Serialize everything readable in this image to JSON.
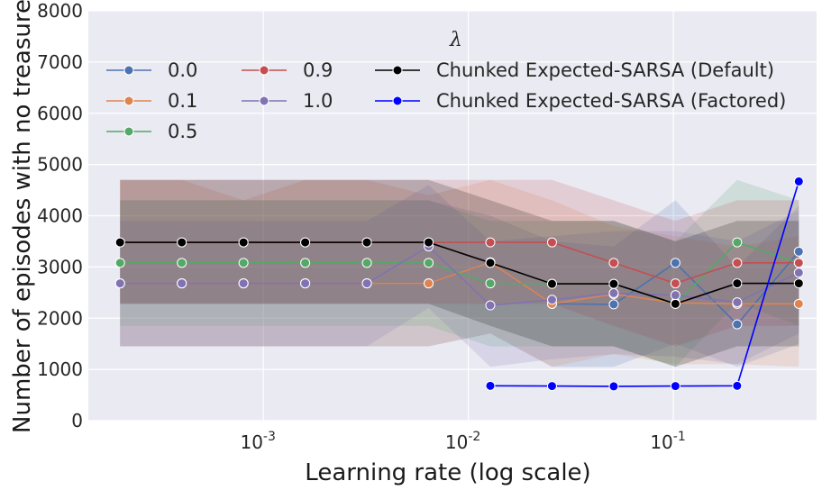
{
  "chart_data": {
    "type": "line",
    "title": "",
    "xlabel": "Learning rate (log scale)",
    "ylabel": "Number of episodes with no treasure",
    "x_scale": "log",
    "xlim": [
      0.00014,
      0.5
    ],
    "ylim": [
      0,
      8000
    ],
    "grid": true,
    "y_ticks": [
      0,
      1000,
      2000,
      3000,
      4000,
      5000,
      6000,
      7000,
      8000
    ],
    "x_ticks": [
      {
        "value": 0.001,
        "base": "10",
        "exp": "-3"
      },
      {
        "value": 0.01,
        "base": "10",
        "exp": "-2"
      },
      {
        "value": 0.1,
        "base": "10",
        "exp": "-1"
      }
    ],
    "legend": {
      "title": "λ",
      "placement": "top"
    },
    "x": [
      0.0002,
      0.0004,
      0.0008,
      0.0016,
      0.0032,
      0.0064,
      0.0128,
      0.0256,
      0.0512,
      0.1024,
      0.2048,
      0.4096
    ],
    "series": [
      {
        "name": "0.0",
        "color": "#4c72b0",
        "values": [
          2680,
          2680,
          2680,
          2680,
          2680,
          2680,
          3090,
          2280,
          2270,
          3080,
          1880,
          3300
        ],
        "lower": [
          1450,
          1450,
          1450,
          1450,
          1450,
          1450,
          1700,
          1050,
          1050,
          1500,
          1050,
          1500
        ],
        "upper": [
          4300,
          4300,
          4300,
          4300,
          4300,
          4300,
          4000,
          3500,
          3400,
          4300,
          3000,
          4200
        ]
      },
      {
        "name": "0.1",
        "color": "#dd8452",
        "values": [
          2680,
          2680,
          2680,
          2680,
          2680,
          2680,
          3090,
          2280,
          2470,
          2300,
          2280,
          2280
        ],
        "lower": [
          1450,
          1450,
          1450,
          1450,
          1450,
          1450,
          1700,
          1050,
          1300,
          1100,
          1100,
          1050
        ],
        "upper": [
          4700,
          4700,
          4300,
          4700,
          4700,
          4400,
          4700,
          4300,
          3800,
          3600,
          3400,
          3600
        ]
      },
      {
        "name": "0.5",
        "color": "#55a868",
        "values": [
          3080,
          3080,
          3080,
          3080,
          3080,
          3080,
          2680,
          2670,
          2670,
          2280,
          3480,
          3080
        ],
        "lower": [
          1850,
          1850,
          1850,
          1850,
          1850,
          1850,
          1450,
          1450,
          1450,
          1050,
          2300,
          1850
        ],
        "upper": [
          4300,
          4300,
          4300,
          4300,
          4300,
          4300,
          3900,
          3900,
          3900,
          3500,
          4700,
          4300
        ]
      },
      {
        "name": "0.9",
        "color": "#c44e52",
        "values": [
          3480,
          3480,
          3480,
          3480,
          3480,
          3480,
          3480,
          3480,
          3080,
          2680,
          3080,
          3080
        ],
        "lower": [
          2280,
          2280,
          2280,
          2280,
          2280,
          2280,
          2280,
          2280,
          1850,
          1450,
          1850,
          1850
        ],
        "upper": [
          4700,
          4700,
          4700,
          4700,
          4700,
          4700,
          4700,
          4700,
          4300,
          3900,
          4300,
          4300
        ]
      },
      {
        "name": "1.0",
        "color": "#8172b3",
        "values": [
          2680,
          2680,
          2680,
          2680,
          2680,
          3400,
          2250,
          2360,
          2490,
          2450,
          2310,
          2890
        ],
        "lower": [
          1450,
          1450,
          1450,
          1450,
          1450,
          2200,
          1050,
          1200,
          1300,
          1250,
          1100,
          1700
        ],
        "upper": [
          3900,
          3900,
          3900,
          3900,
          3900,
          4600,
          3500,
          3600,
          3700,
          3700,
          3500,
          4100
        ]
      },
      {
        "name": "Chunked Expected-SARSA (Default)",
        "color": "#000000",
        "values": [
          3480,
          3480,
          3480,
          3480,
          3480,
          3480,
          3080,
          2670,
          2670,
          2280,
          2680,
          2680
        ],
        "lower": [
          2280,
          2280,
          2280,
          2280,
          2280,
          2280,
          1850,
          1450,
          1450,
          1050,
          1450,
          1450
        ],
        "upper": [
          4700,
          4700,
          4700,
          4700,
          4700,
          4700,
          4300,
          3900,
          3900,
          3500,
          3900,
          3900
        ]
      },
      {
        "name": "Chunked Expected-SARSA (Factored)",
        "color": "#0000ff",
        "x": [
          0.0128,
          0.0256,
          0.0512,
          0.1024,
          0.2048,
          0.4096
        ],
        "values": [
          680,
          675,
          670,
          675,
          680,
          4670
        ]
      }
    ]
  }
}
